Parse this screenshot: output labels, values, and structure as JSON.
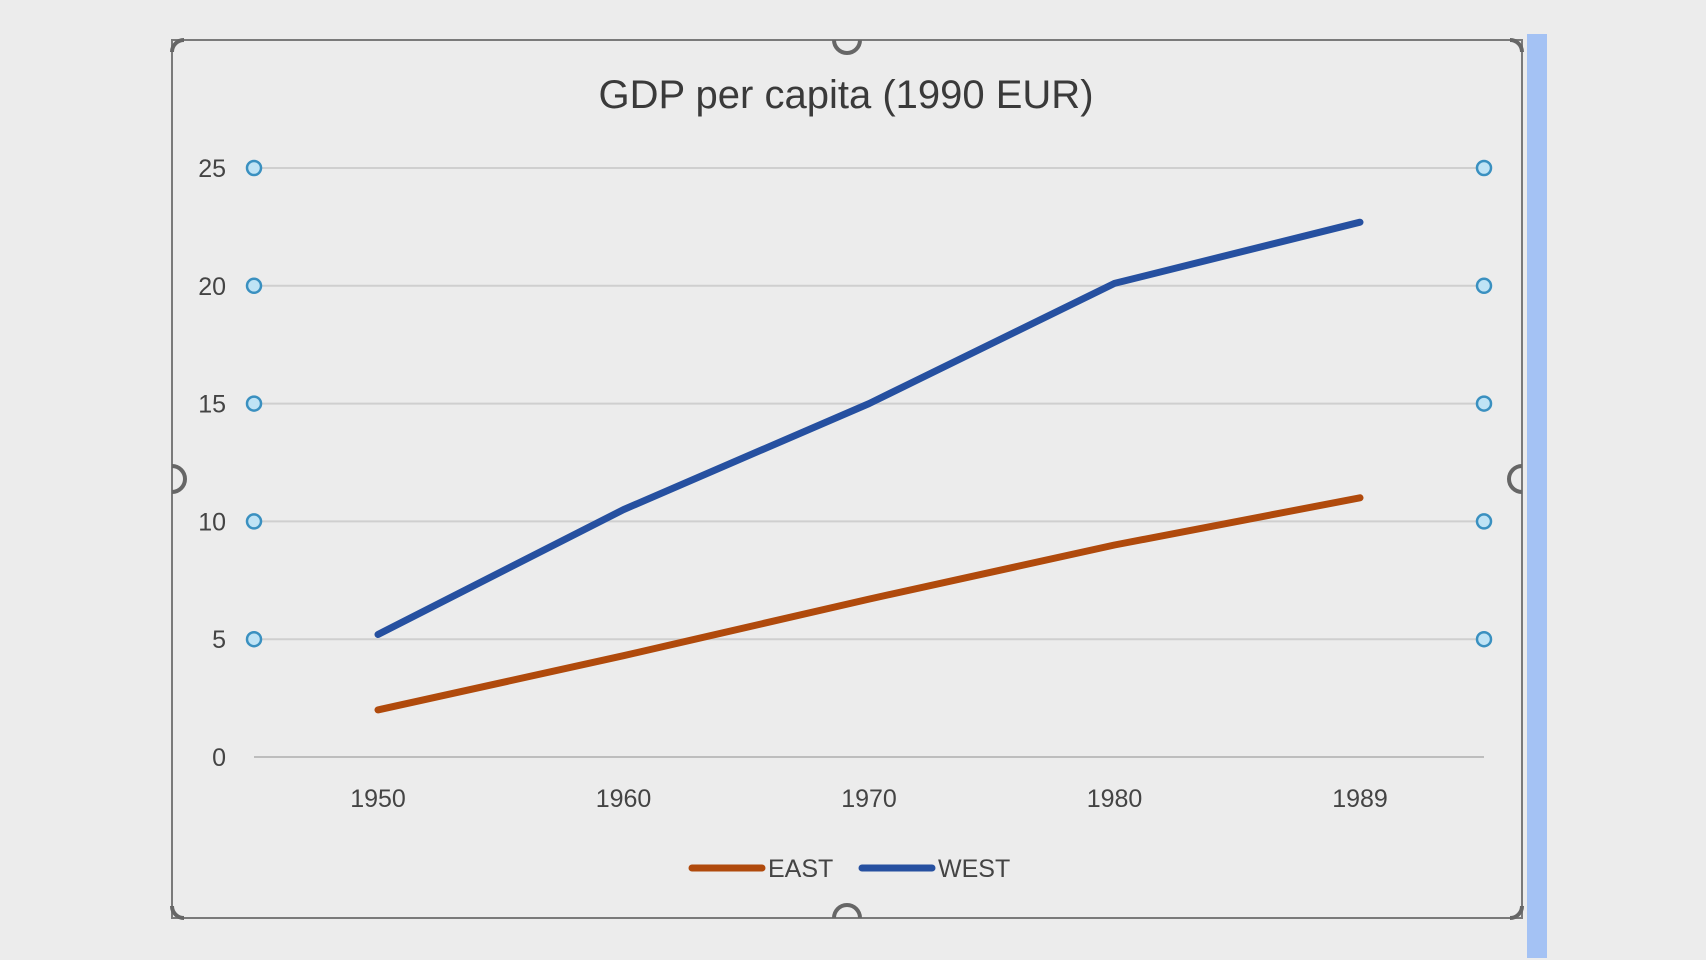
{
  "colors": {
    "east": "#b04a0c",
    "west": "#2650a0",
    "gridline": "#cfcfcf",
    "axis_text": "#444444",
    "title_text": "#3a3a3a",
    "frame": "#7a7a7a",
    "handle_fill": "#bfe3f5",
    "handle_stroke": "#3a90c0",
    "selection_bar": "#a4c2f4"
  },
  "chart_data": {
    "type": "line",
    "title": "GDP per capita (1990 EUR)",
    "xlabel": "",
    "ylabel": "",
    "categories": [
      "1950",
      "1960",
      "1970",
      "1980",
      "1989"
    ],
    "series": [
      {
        "name": "EAST",
        "color_key": "east",
        "values": [
          2.0,
          4.3,
          6.7,
          9.0,
          11.0
        ]
      },
      {
        "name": "WEST",
        "color_key": "west",
        "values": [
          5.2,
          10.5,
          15.0,
          20.1,
          22.7
        ]
      }
    ],
    "ylim": [
      0,
      25
    ],
    "yticks": [
      "0",
      "5",
      "10",
      "15",
      "20",
      "25"
    ],
    "ytick_values": [
      0,
      5,
      10,
      15,
      20,
      25
    ],
    "grid": true,
    "legend_position": "bottom-center"
  }
}
